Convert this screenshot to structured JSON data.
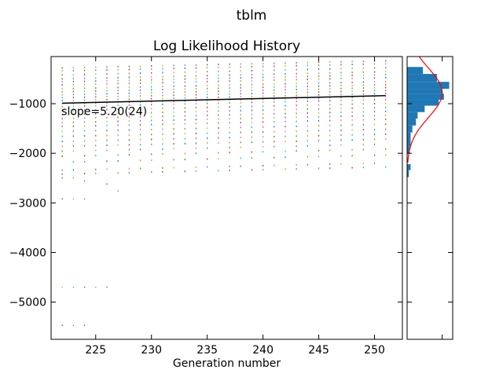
{
  "figure": {
    "suptitle": "tblm"
  },
  "chart_data": [
    {
      "type": "scatter",
      "title": "Log Likelihood History",
      "xlabel": "Generation number",
      "ylabel": "",
      "xlim": [
        221,
        252.5
      ],
      "ylim": [
        -5750,
        -50
      ],
      "xticks": [
        225,
        230,
        235,
        240,
        245,
        250
      ],
      "yticks": [
        -5000,
        -4000,
        -3000,
        -2000,
        -1000
      ],
      "ytick_labels": [
        "−5000",
        "−4000",
        "−3000",
        "−2000",
        "−1000"
      ],
      "generations": {
        "start": 222,
        "end": 251
      },
      "population_levels": [
        -280,
        -340,
        -420,
        -500,
        -560,
        -620,
        -700,
        -760,
        -820,
        -880,
        -940,
        -1000,
        -1060,
        -1140,
        -1220,
        -1300,
        -1380,
        -1460,
        -1560,
        -1660,
        -1760,
        -1860,
        -1960,
        -2060,
        -2180,
        -2340,
        -2420
      ],
      "outliers": [
        {
          "x": 222,
          "y": -2500
        },
        {
          "x": 223,
          "y": -2500
        },
        {
          "x": 224,
          "y": -2560
        },
        {
          "x": 226,
          "y": -2620
        },
        {
          "x": 227,
          "y": -2760
        },
        {
          "x": 222,
          "y": -2920
        },
        {
          "x": 223,
          "y": -2920
        },
        {
          "x": 224,
          "y": -2920
        },
        {
          "x": 222,
          "y": -4700
        },
        {
          "x": 223,
          "y": -4700
        },
        {
          "x": 224,
          "y": -4700
        },
        {
          "x": 225,
          "y": -4700
        },
        {
          "x": 226,
          "y": -4700
        },
        {
          "x": 222,
          "y": -5470
        },
        {
          "x": 223,
          "y": -5470
        },
        {
          "x": 224,
          "y": -5470
        }
      ],
      "fit_line": {
        "x": [
          222,
          251
        ],
        "y": [
          -990,
          -838
        ]
      },
      "annotation": "slope=5.20(24)",
      "colors": [
        "#1f77b4",
        "#ff7f0e",
        "#2ca02c",
        "#d62728",
        "#9467bd",
        "#8c564b",
        "#e377c2",
        "#7f7f7f",
        "#bcbd22",
        "#17becf"
      ]
    },
    {
      "type": "bar",
      "orientation": "horizontal",
      "title": "",
      "bins": [
        {
          "y0": -260,
          "y1": -400,
          "count": 9
        },
        {
          "y0": -400,
          "y1": -560,
          "count": 17
        },
        {
          "y0": -560,
          "y1": -700,
          "count": 24
        },
        {
          "y0": -700,
          "y1": -800,
          "count": 20
        },
        {
          "y0": -800,
          "y1": -920,
          "count": 21
        },
        {
          "y0": -920,
          "y1": -1040,
          "count": 18
        },
        {
          "y0": -1040,
          "y1": -1170,
          "count": 10
        },
        {
          "y0": -1170,
          "y1": -1300,
          "count": 6
        },
        {
          "y0": -1300,
          "y1": -1440,
          "count": 5
        },
        {
          "y0": -1440,
          "y1": -1580,
          "count": 3
        },
        {
          "y0": -1580,
          "y1": -1720,
          "count": 2
        },
        {
          "y0": -1720,
          "y1": -1860,
          "count": 2
        },
        {
          "y0": -1860,
          "y1": -2000,
          "count": 1.5
        },
        {
          "y0": -2220,
          "y1": -2340,
          "count": 2
        },
        {
          "y0": -2340,
          "y1": -2480,
          "count": 1
        }
      ],
      "gaussian_fit": {
        "mean": -780,
        "sd": 500,
        "peak": 20,
        "color": "#ff0000"
      },
      "xlim": [
        0,
        26
      ],
      "xticks": [
        20
      ],
      "bar_color": "#1f77b4"
    }
  ]
}
